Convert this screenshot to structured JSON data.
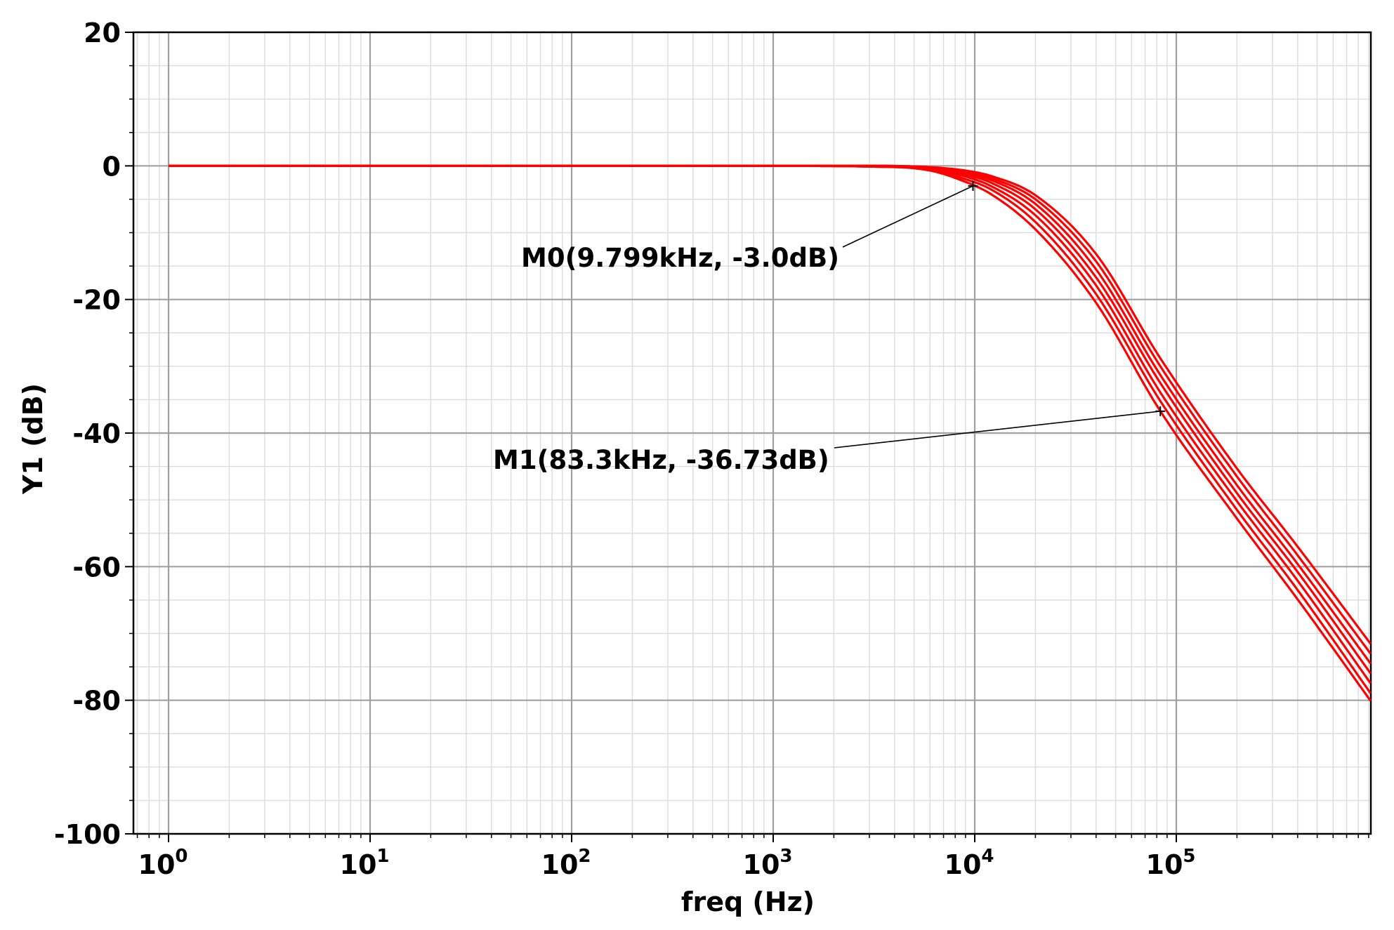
{
  "chart_data": {
    "type": "line",
    "xlabel": "freq (Hz)",
    "ylabel": "Y1 (dB)",
    "x_scale": "log",
    "xlim": [
      1,
      1000000
    ],
    "ylim": [
      -100,
      20
    ],
    "x_ticks": [
      {
        "base": "10",
        "exp": "0",
        "value": 1
      },
      {
        "base": "10",
        "exp": "1",
        "value": 10
      },
      {
        "base": "10",
        "exp": "2",
        "value": 100
      },
      {
        "base": "10",
        "exp": "3",
        "value": 1000
      },
      {
        "base": "10",
        "exp": "4",
        "value": 10000
      },
      {
        "base": "10",
        "exp": "5",
        "value": 100000
      }
    ],
    "y_ticks": [
      {
        "label": "20",
        "value": 20
      },
      {
        "label": "0",
        "value": 0
      },
      {
        "label": "-20",
        "value": -20
      },
      {
        "label": "-40",
        "value": -40
      },
      {
        "label": "-60",
        "value": -60
      },
      {
        "label": "-80",
        "value": -80
      },
      {
        "label": "-100",
        "value": -100
      }
    ],
    "grid": "major and minor",
    "line_color": "#ff0000",
    "series": [
      {
        "x": [
          1,
          100,
          1000,
          3000,
          6000,
          9000,
          12000,
          20000,
          40000,
          83300,
          200000,
          400000,
          1000000
        ],
        "y": [
          0,
          0,
          0,
          -0.1,
          -0.7,
          -2.4,
          -4.2,
          -9.5,
          -20.5,
          -36.7,
          -52.8,
          -64.9,
          -81.6
        ]
      },
      {
        "x": [
          1,
          100,
          1000,
          3000,
          6000,
          9000,
          12000,
          20000,
          40000,
          83300,
          200000,
          400000,
          1000000
        ],
        "y": [
          0,
          0,
          0,
          -0.1,
          -0.6,
          -2.0,
          -3.5,
          -8.4,
          -19.2,
          -35.2,
          -51.5,
          -63.5,
          -80.5
        ]
      },
      {
        "x": [
          1,
          100,
          1000,
          3000,
          6000,
          9000,
          12000,
          20000,
          40000,
          83300,
          200000,
          400000,
          1000000
        ],
        "y": [
          0,
          0,
          0,
          -0.1,
          -0.5,
          -1.6,
          -3.0,
          -7.4,
          -17.9,
          -33.9,
          -50.2,
          -62.1,
          -79.0
        ]
      },
      {
        "x": [
          1,
          100,
          1000,
          3000,
          6000,
          9000,
          12000,
          20000,
          40000,
          83300,
          200000,
          400000,
          1000000
        ],
        "y": [
          0,
          0,
          0,
          0,
          -0.4,
          -1.3,
          -2.5,
          -6.5,
          -16.7,
          -32.5,
          -49.0,
          -60.8,
          -77.5
        ]
      },
      {
        "x": [
          1,
          100,
          1000,
          3000,
          6000,
          9000,
          12000,
          20000,
          40000,
          83300,
          200000,
          400000,
          1000000
        ],
        "y": [
          0,
          0,
          0,
          0,
          -0.3,
          -1.1,
          -2.1,
          -5.7,
          -15.5,
          -31.3,
          -47.8,
          -59.6,
          -76.0
        ]
      },
      {
        "x": [
          1,
          100,
          1000,
          3000,
          6000,
          9000,
          12000,
          20000,
          40000,
          83300,
          200000,
          400000,
          1000000
        ],
        "y": [
          0,
          0,
          0,
          0,
          -0.2,
          -0.9,
          -1.8,
          -5.0,
          -14.3,
          -30.0,
          -46.5,
          -58.3,
          -74.5
        ]
      },
      {
        "x": [
          1,
          100,
          1000,
          3000,
          6000,
          9000,
          12000,
          20000,
          40000,
          83300,
          200000,
          400000,
          1000000
        ],
        "y": [
          0,
          0,
          0,
          0,
          -0.2,
          -0.7,
          -1.5,
          -4.4,
          -13.2,
          -28.8,
          -45.3,
          -57.0,
          -73.0
        ]
      }
    ],
    "markers": [
      {
        "label": "M0(9.799kHz, -3.0dB)",
        "x": 9799,
        "y": -3.0
      },
      {
        "label": "M1(83.3kHz, -36.73dB)",
        "x": 83300,
        "y": -36.73
      }
    ]
  }
}
